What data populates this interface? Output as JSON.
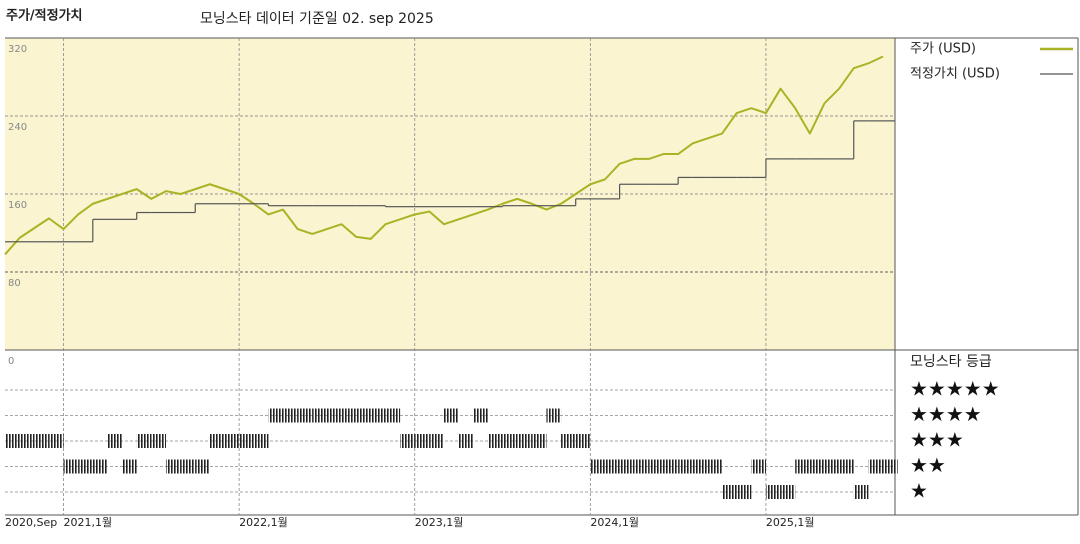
{
  "chart_data": {
    "type": "line",
    "title": "주가/적정가치",
    "subtitle": "모닝스타 데이터 기준일 02. sep 2025",
    "x": [
      "2020-09",
      "2020-10",
      "2020-11",
      "2020-12",
      "2021-01",
      "2021-02",
      "2021-03",
      "2021-04",
      "2021-05",
      "2021-06",
      "2021-07",
      "2021-08",
      "2021-09",
      "2021-10",
      "2021-11",
      "2021-12",
      "2022-01",
      "2022-02",
      "2022-03",
      "2022-04",
      "2022-05",
      "2022-06",
      "2022-07",
      "2022-08",
      "2022-09",
      "2022-10",
      "2022-11",
      "2022-12",
      "2023-01",
      "2023-02",
      "2023-03",
      "2023-04",
      "2023-05",
      "2023-06",
      "2023-07",
      "2023-08",
      "2023-09",
      "2023-10",
      "2023-11",
      "2023-12",
      "2024-01",
      "2024-02",
      "2024-03",
      "2024-04",
      "2024-05",
      "2024-06",
      "2024-07",
      "2024-08",
      "2024-09",
      "2024-10",
      "2024-11",
      "2024-12",
      "2025-01",
      "2025-02",
      "2025-03",
      "2025-04",
      "2025-05",
      "2025-06",
      "2025-07",
      "2025-08",
      "2025-09"
    ],
    "xticks": [
      {
        "value": "2020-09",
        "label": "2020,Sep"
      },
      {
        "value": "2021-01",
        "label": "2021,1월"
      },
      {
        "value": "2022-01",
        "label": "2022,1월"
      },
      {
        "value": "2023-01",
        "label": "2023,1월"
      },
      {
        "value": "2024-01",
        "label": "2024,1월"
      },
      {
        "value": "2025-01",
        "label": "2025,1월"
      }
    ],
    "ylim": [
      0,
      320
    ],
    "yticks": [
      0,
      80,
      160,
      240,
      320
    ],
    "grid": true,
    "series": [
      {
        "name": "주가 (USD)",
        "color": "#a9b325",
        "values": [
          98,
          115,
          125,
          135,
          124,
          139,
          150,
          155,
          160,
          165,
          155,
          163,
          160,
          165,
          170,
          165,
          160,
          150,
          139,
          144,
          124,
          119,
          124,
          129,
          116,
          114,
          129,
          134,
          139,
          142,
          129,
          134,
          139,
          144,
          150,
          155,
          150,
          144,
          150,
          160,
          170,
          175,
          191,
          196,
          196,
          201,
          201,
          212,
          217,
          222,
          243,
          248,
          243,
          268,
          248,
          222,
          253,
          268,
          289,
          294,
          301
        ]
      },
      {
        "name": "적정가치 (USD)",
        "color": "#555555",
        "step": true,
        "values": [
          111,
          111,
          111,
          111,
          111,
          111,
          134,
          134,
          134,
          141,
          141,
          141,
          141,
          150,
          150,
          150,
          150,
          150,
          148,
          148,
          148,
          148,
          148,
          148,
          148,
          148,
          147,
          147,
          147,
          147,
          147,
          147,
          147,
          147,
          148,
          148,
          148,
          148,
          148,
          155,
          155,
          155,
          170,
          170,
          170,
          170,
          177,
          177,
          177,
          177,
          177,
          177,
          196,
          196,
          196,
          196,
          196,
          196,
          235,
          235,
          235
        ]
      }
    ],
    "rating": {
      "title": "모닝스타 등급",
      "color": "#222222",
      "ticks": [
        {
          "value": 5,
          "label": "★★★★★"
        },
        {
          "value": 4,
          "label": "★★★★"
        },
        {
          "value": 3,
          "label": "★★★"
        },
        {
          "value": 2,
          "label": "★★"
        },
        {
          "value": 1,
          "label": "★"
        }
      ],
      "values": [
        3,
        3,
        3,
        3,
        2,
        2,
        2,
        3,
        2,
        3,
        3,
        2,
        2,
        2,
        3,
        3,
        3,
        3,
        4,
        4,
        4,
        4,
        4,
        4,
        4,
        4,
        4,
        3,
        3,
        3,
        4,
        3,
        4,
        3,
        3,
        3,
        3,
        4,
        3,
        3,
        2,
        2,
        2,
        2,
        2,
        2,
        2,
        2,
        2,
        1,
        1,
        2,
        1,
        1,
        2,
        2,
        2,
        2,
        1,
        2,
        2
      ]
    }
  }
}
